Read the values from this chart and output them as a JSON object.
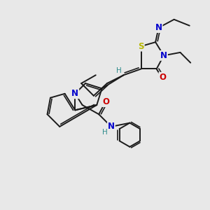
{
  "bg_color": "#e8e8e8",
  "bond_color": "#1a1a1a",
  "bond_width": 1.4,
  "atom_colors": {
    "S": "#b8b800",
    "N": "#0000cc",
    "O": "#cc0000",
    "H": "#2e8b8b",
    "C": "#1a1a1a"
  },
  "font_size_atom": 8.5
}
